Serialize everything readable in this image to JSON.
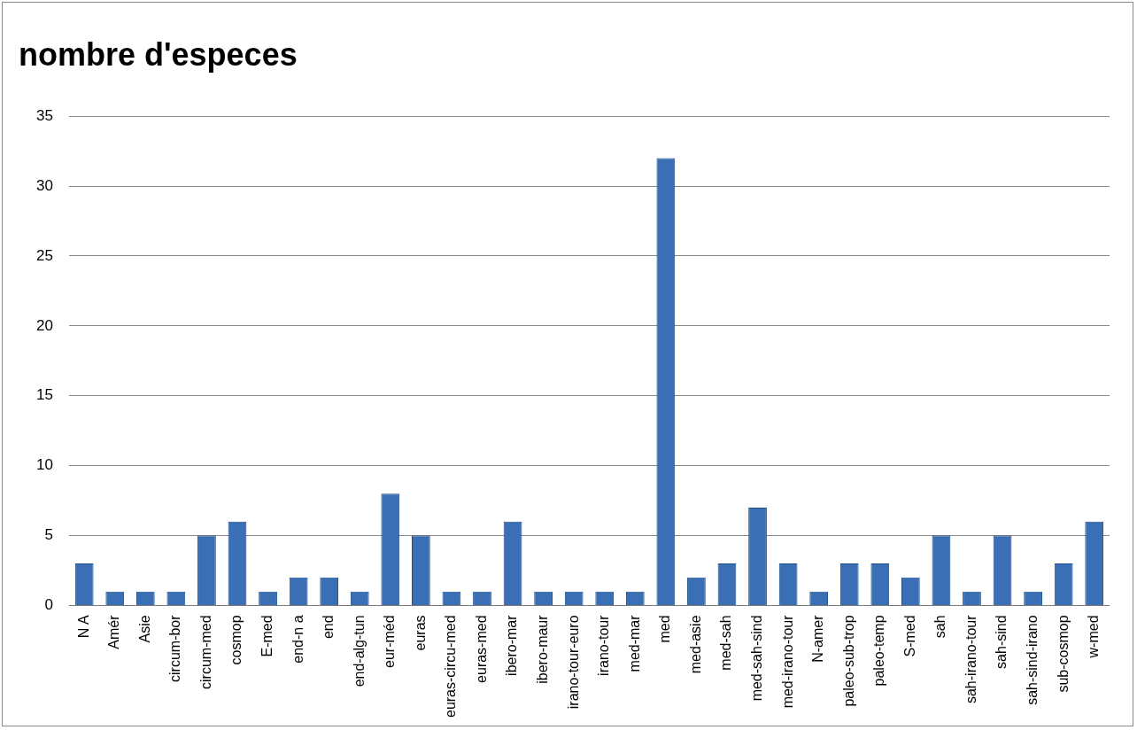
{
  "chart_data": {
    "type": "bar",
    "title": "nombre d'especes",
    "categories": [
      "N A",
      "Amér",
      "Asie",
      "circum-bor",
      "circum-med",
      "cosmop",
      "E-med",
      "end-n a",
      "end",
      "end-alg-tun",
      "eur-méd",
      "euras",
      "euras-circu-med",
      "euras-med",
      "ibero-mar",
      "ibero-maur",
      "irano-tour-euro",
      "irano-tour",
      "med-mar",
      "med",
      "med-asie",
      "med-sah",
      "med-sah-sind",
      "med-irano-tour",
      "N-amer",
      "paleo-sub-trop",
      "paleo-temp",
      "S-med",
      "sah",
      "sah-irano-tour",
      "sah-sind",
      "sah-sind-irano",
      "sub-cosmop",
      "w-med"
    ],
    "values": [
      3,
      1,
      1,
      1,
      5,
      6,
      1,
      2,
      2,
      1,
      8,
      5,
      1,
      1,
      6,
      1,
      1,
      1,
      1,
      32,
      2,
      3,
      7,
      3,
      1,
      3,
      3,
      2,
      5,
      1,
      5,
      1,
      3,
      6
    ],
    "color": "#3a6fb5",
    "ylim": [
      0,
      35
    ],
    "yticks": [
      0,
      5,
      10,
      15,
      20,
      25,
      30,
      35
    ],
    "grid": "y",
    "legend": false
  }
}
